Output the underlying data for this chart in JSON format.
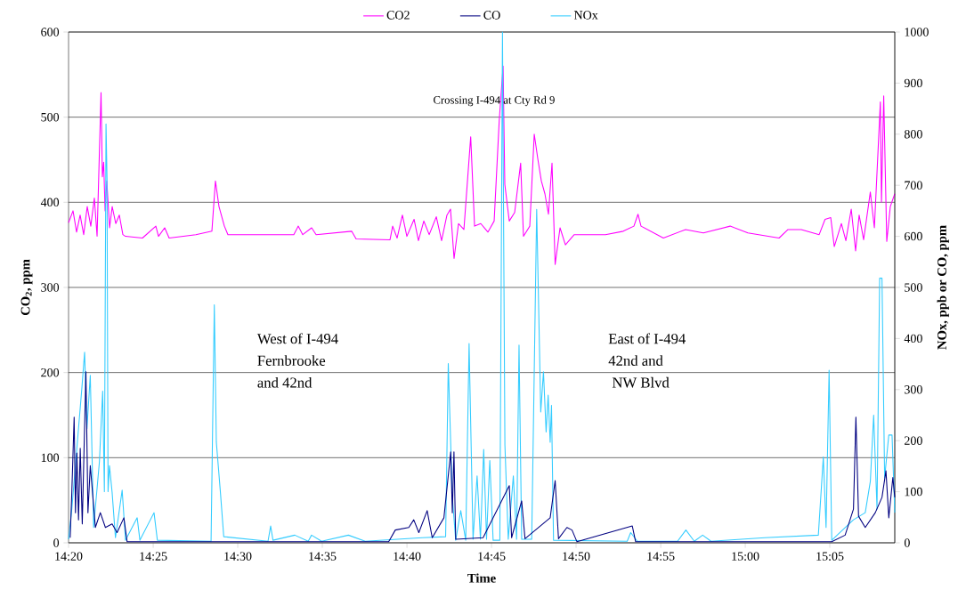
{
  "chart_data": {
    "type": "line",
    "xlabel": "Time",
    "ylabel": "CO$_{2}$, ppm",
    "y2label": "NOx, ppb or CO, ppm",
    "xlim": [
      14.3333,
      15.1473
    ],
    "xticks": [
      {
        "value": 14.3333,
        "label": "14:20"
      },
      {
        "value": 14.4167,
        "label": "14:25"
      },
      {
        "value": 14.5,
        "label": "14:30"
      },
      {
        "value": 14.5833,
        "label": "14:35"
      },
      {
        "value": 14.6667,
        "label": "14:40"
      },
      {
        "value": 14.75,
        "label": "14:45"
      },
      {
        "value": 14.8333,
        "label": "14:50"
      },
      {
        "value": 14.9167,
        "label": "14:55"
      },
      {
        "value": 15.0,
        "label": "15:00"
      },
      {
        "value": 15.0833,
        "label": "15:05"
      }
    ],
    "ylim": [
      0,
      600
    ],
    "yticks": [
      0,
      100,
      200,
      300,
      400,
      500,
      600
    ],
    "y2lim": [
      0,
      1000
    ],
    "y2ticks": [
      0,
      100,
      200,
      300,
      400,
      500,
      600,
      700,
      800,
      900,
      1000
    ],
    "grid": "y",
    "legend": "top",
    "annotations": [
      "Crossing I-494 at Cty Rd 9",
      "West of I-494",
      "Fernbrooke",
      "and 42nd",
      "East of I-494",
      "42nd and",
      " NW Blvd"
    ],
    "series": [
      {
        "name": "CO2",
        "color": "#ff00ff",
        "x": [
          14.3333,
          14.3377,
          14.3412,
          14.3447,
          14.3482,
          14.3517,
          14.3552,
          14.3587,
          14.3614,
          14.3653,
          14.3666,
          14.3679,
          14.3693,
          14.371,
          14.3737,
          14.3763,
          14.3798,
          14.3833,
          14.3868,
          14.3894,
          14.4061,
          14.4193,
          14.4219,
          14.428,
          14.4324,
          14.4587,
          14.4745,
          14.478,
          14.4815,
          14.4868,
          14.4903,
          14.5289,
          14.5552,
          14.5596,
          14.564,
          14.5728,
          14.5772,
          14.6122,
          14.6166,
          14.65,
          14.6526,
          14.657,
          14.6622,
          14.6666,
          14.6737,
          14.678,
          14.6833,
          14.6886,
          14.6956,
          14.7008,
          14.7061,
          14.7096,
          14.7131,
          14.7175,
          14.7228,
          14.7295,
          14.7333,
          14.7394,
          14.7465,
          14.7526,
          14.7576,
          14.7614,
          14.7631,
          14.7675,
          14.7728,
          14.7787,
          14.7815,
          14.7877,
          14.7921,
          14.7956,
          14.7991,
          14.8026,
          14.8061,
          14.8096,
          14.8127,
          14.8175,
          14.8228,
          14.8315,
          14.8622,
          14.8798,
          14.8903,
          14.8943,
          14.8973,
          14.9193,
          14.9412,
          14.9587,
          14.9851,
          15.0026,
          15.0333,
          15.0421,
          15.0552,
          15.0728,
          15.0786,
          15.0842,
          15.0877,
          15.0947,
          15.0991,
          15.1044,
          15.1087,
          15.1122,
          15.1166,
          15.1232,
          15.1272,
          15.1331,
          15.1342,
          15.1364,
          15.1394,
          15.1429,
          15.1473
        ],
        "values": [
          376,
          390,
          365,
          385,
          362,
          395,
          372,
          405,
          360,
          529,
          430,
          447,
          390,
          425,
          370,
          395,
          375,
          385,
          362,
          360,
          358,
          372,
          360,
          370,
          358,
          362,
          366,
          425,
          395,
          372,
          362,
          362,
          362,
          372,
          362,
          370,
          362,
          366,
          357,
          356,
          372,
          358,
          385,
          360,
          380,
          355,
          378,
          362,
          383,
          355,
          385,
          392,
          334,
          375,
          368,
          477,
          372,
          375,
          365,
          378,
          496,
          560,
          421,
          378,
          388,
          446,
          360,
          372,
          480,
          451,
          425,
          410,
          386,
          446,
          327,
          370,
          350,
          362,
          362,
          366,
          372,
          386,
          372,
          358,
          368,
          364,
          372,
          364,
          358,
          368,
          368,
          362,
          380,
          382,
          348,
          375,
          355,
          392,
          343,
          385,
          356,
          412,
          370,
          518,
          400,
          525,
          354,
          395,
          410
        ]
      },
      {
        "name": "CO",
        "color": "#000080",
        "axis": "y2",
        "x": [
          14.3349,
          14.3365,
          14.3388,
          14.3401,
          14.3415,
          14.3431,
          14.3448,
          14.3468,
          14.3504,
          14.3524,
          14.3547,
          14.3573,
          14.3597,
          14.3646,
          14.3696,
          14.3762,
          14.3811,
          14.3878,
          14.391,
          14.6487,
          14.6552,
          14.6685,
          14.6734,
          14.6784,
          14.6866,
          14.6916,
          14.7031,
          14.7098,
          14.7114,
          14.713,
          14.7147,
          14.7417,
          14.7675,
          14.7698,
          14.7797,
          14.783,
          14.8078,
          14.8127,
          14.816,
          14.8243,
          14.8293,
          14.8342,
          14.8887,
          14.892,
          15.0852,
          15.0984,
          15.1066,
          15.109,
          15.1116,
          15.1182,
          15.1281,
          15.1347,
          15.1386,
          15.1414,
          15.1454,
          15.1473
        ],
        "values": [
          10,
          99,
          246,
          59,
          176,
          45,
          185,
          37,
          335,
          59,
          151,
          89,
          30,
          59,
          30,
          37,
          20,
          49,
          2,
          2,
          25,
          30,
          45,
          20,
          63,
          10,
          49,
          178,
          59,
          178,
          7,
          10,
          112,
          10,
          82,
          8,
          49,
          122,
          8,
          30,
          25,
          2,
          33,
          2,
          2,
          15,
          66,
          246,
          52,
          30,
          59,
          89,
          141,
          49,
          128,
          89
        ]
      },
      {
        "name": "NOx",
        "color": "#33ccff",
        "axis": "y2",
        "x": [
          14.3333,
          14.3365,
          14.3465,
          14.3491,
          14.3514,
          14.3547,
          14.358,
          14.3637,
          14.3669,
          14.3686,
          14.3702,
          14.3712,
          14.3722,
          14.3736,
          14.3762,
          14.3795,
          14.3861,
          14.3894,
          14.4009,
          14.4036,
          14.4175,
          14.4208,
          14.4737,
          14.4769,
          14.4789,
          14.4829,
          14.4862,
          14.5298,
          14.5324,
          14.5347,
          14.5562,
          14.5694,
          14.5727,
          14.5826,
          14.609,
          14.6256,
          14.6817,
          14.7048,
          14.7074,
          14.7114,
          14.7147,
          14.7197,
          14.7246,
          14.7279,
          14.7318,
          14.7358,
          14.7391,
          14.7423,
          14.7451,
          14.7483,
          14.7516,
          14.7582,
          14.7608,
          14.7632,
          14.7665,
          14.7715,
          14.7747,
          14.7771,
          14.7797,
          14.7896,
          14.7945,
          14.7972,
          14.7985,
          14.8012,
          14.8038,
          14.8058,
          14.8078,
          14.8091,
          14.8111,
          14.8837,
          14.8871,
          14.8937,
          14.9333,
          14.9415,
          14.9498,
          14.958,
          14.9663,
          15.0192,
          15.072,
          15.0769,
          15.0796,
          15.0826,
          15.0852,
          15.0984,
          15.1066,
          15.1182,
          15.1232,
          15.1265,
          15.1298,
          15.1324,
          15.1347,
          15.1373,
          15.1414,
          15.1446,
          15.1473
        ],
        "values": [
          7,
          66,
          305,
          373,
          223,
          328,
          30,
          159,
          297,
          100,
          820,
          712,
          100,
          151,
          99,
          10,
          103,
          5,
          49,
          5,
          59,
          5,
          3,
          466,
          197,
          99,
          12,
          3,
          33,
          5,
          15,
          3,
          15,
          3,
          15,
          3,
          10,
          12,
          351,
          89,
          5,
          63,
          5,
          390,
          7,
          131,
          7,
          183,
          7,
          161,
          5,
          5,
          1000,
          191,
          7,
          131,
          7,
          387,
          7,
          7,
          653,
          387,
          256,
          335,
          217,
          289,
          197,
          269,
          5,
          3,
          20,
          3,
          3,
          25,
          3,
          15,
          3,
          10,
          15,
          168,
          30,
          338,
          5,
          30,
          45,
          59,
          120,
          250,
          66,
          518,
          518,
          127,
          211,
          211,
          59
        ]
      }
    ]
  }
}
